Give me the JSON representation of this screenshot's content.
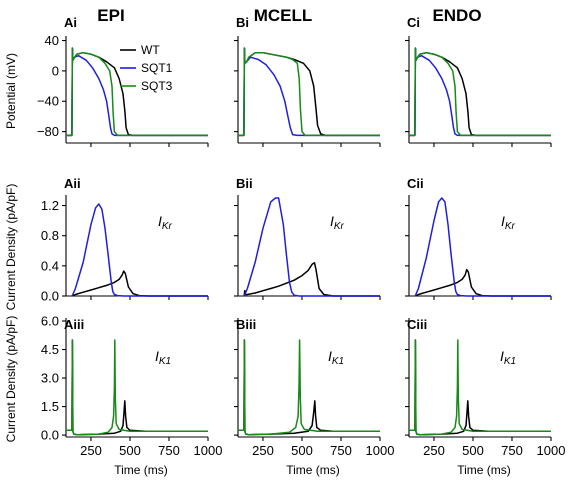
{
  "columns": [
    "EPI",
    "MCELL",
    "ENDO"
  ],
  "rows": [
    {
      "ylabel": "Potential (mV)",
      "panels": [
        "Ai",
        "Bi",
        "Ci"
      ],
      "annotation": null,
      "annotation_sub": null
    },
    {
      "ylabel": "Current Density (pA/pF)",
      "panels": [
        "Aii",
        "Bii",
        "Cii"
      ],
      "annotation": "I",
      "annotation_sub": "Kr"
    },
    {
      "ylabel": "Current Density (pA/pF)",
      "panels": [
        "Aiii",
        "Biii",
        "Ciii"
      ],
      "annotation": "I",
      "annotation_sub": "K1"
    }
  ],
  "xlabel": "Time (ms)",
  "colors": {
    "WT": "#000000",
    "SQT1": "#1f1fdd",
    "SQT3": "#178a17"
  },
  "legend": [
    "WT",
    "SQT1",
    "SQT3"
  ],
  "chart_data": [
    {
      "type": "line",
      "row": 0,
      "x_ticks": [
        250,
        500,
        750,
        1000
      ],
      "xlim": [
        90,
        1000
      ],
      "y_ticks": [
        40,
        0,
        -40,
        -80
      ],
      "ylim": [
        -95,
        42
      ],
      "series_by_column": [
        [
          {
            "name": "WT",
            "x": [
              90,
              128,
              131,
              134,
              145,
              160,
              200,
              250,
              300,
              350,
              400,
              430,
              455,
              468,
              475,
              490,
              520,
              1000
            ],
            "y": [
              -85,
              -85,
              30,
              14,
              18,
              22,
              24,
              22,
              18,
              12,
              4,
              -10,
              -30,
              -55,
              -75,
              -84,
              -85,
              -85
            ]
          },
          {
            "name": "SQT1",
            "x": [
              90,
              128,
              131,
              134,
              145,
              170,
              220,
              260,
              300,
              330,
              350,
              365,
              375,
              385,
              400,
              430,
              1000
            ],
            "y": [
              -85,
              -85,
              30,
              14,
              18,
              20,
              14,
              4,
              -10,
              -25,
              -40,
              -60,
              -75,
              -83,
              -85,
              -85,
              -85
            ]
          },
          {
            "name": "SQT3",
            "x": [
              90,
              128,
              131,
              134,
              145,
              160,
              200,
              250,
              300,
              340,
              370,
              385,
              392,
              400,
              420,
              1000
            ],
            "y": [
              -85,
              -85,
              30,
              14,
              18,
              22,
              24,
              22,
              18,
              10,
              0,
              -20,
              -55,
              -80,
              -85,
              -85
            ]
          }
        ],
        [
          {
            "name": "WT",
            "x": [
              90,
              128,
              131,
              134,
              145,
              160,
              200,
              250,
              300,
              350,
              400,
              450,
              510,
              550,
              575,
              590,
              600,
              620,
              650,
              1000
            ],
            "y": [
              -85,
              -85,
              30,
              10,
              12,
              18,
              24,
              24,
              22,
              20,
              18,
              15,
              10,
              0,
              -20,
              -50,
              -72,
              -83,
              -85,
              -85
            ]
          },
          {
            "name": "SQT1",
            "x": [
              90,
              128,
              131,
              134,
              145,
              170,
              220,
              270,
              320,
              360,
              390,
              410,
              425,
              440,
              470,
              1000
            ],
            "y": [
              -85,
              -85,
              30,
              10,
              12,
              18,
              15,
              8,
              -5,
              -20,
              -40,
              -60,
              -75,
              -84,
              -85,
              -85
            ]
          },
          {
            "name": "SQT3",
            "x": [
              90,
              128,
              131,
              134,
              145,
              160,
              200,
              250,
              300,
              350,
              400,
              440,
              470,
              482,
              490,
              500,
              520,
              1000
            ],
            "y": [
              -85,
              -85,
              30,
              10,
              12,
              18,
              24,
              24,
              22,
              20,
              18,
              15,
              10,
              -10,
              -50,
              -80,
              -85,
              -85
            ]
          }
        ],
        [
          {
            "name": "WT",
            "x": [
              90,
              128,
              131,
              134,
              145,
              160,
              200,
              250,
              300,
              350,
              400,
              430,
              455,
              468,
              475,
              490,
              520,
              1000
            ],
            "y": [
              -85,
              -85,
              30,
              14,
              18,
              22,
              24,
              22,
              18,
              12,
              4,
              -10,
              -30,
              -55,
              -75,
              -84,
              -85,
              -85
            ]
          },
          {
            "name": "SQT1",
            "x": [
              90,
              128,
              131,
              134,
              145,
              170,
              220,
              260,
              300,
              330,
              350,
              365,
              375,
              385,
              400,
              430,
              1000
            ],
            "y": [
              -85,
              -85,
              30,
              14,
              18,
              20,
              14,
              4,
              -10,
              -25,
              -40,
              -60,
              -75,
              -83,
              -85,
              -85,
              -85
            ]
          },
          {
            "name": "SQT3",
            "x": [
              90,
              128,
              131,
              134,
              145,
              160,
              200,
              250,
              300,
              340,
              370,
              385,
              392,
              400,
              420,
              1000
            ],
            "y": [
              -85,
              -85,
              30,
              14,
              18,
              22,
              24,
              22,
              18,
              10,
              0,
              -20,
              -55,
              -80,
              -85,
              -85
            ]
          }
        ]
      ]
    },
    {
      "type": "line",
      "row": 1,
      "x_ticks": [
        250,
        500,
        750,
        1000
      ],
      "xlim": [
        90,
        1000
      ],
      "y_ticks": [
        0.0,
        0.4,
        0.8,
        1.2
      ],
      "ylim": [
        0,
        1.3
      ],
      "series_by_column": [
        [
          {
            "name": "WT",
            "x": [
              130,
              150,
              200,
              250,
              300,
              350,
              400,
              430,
              450,
              460,
              470,
              490,
              520,
              560,
              620,
              1000
            ],
            "y": [
              0,
              0.02,
              0.05,
              0.08,
              0.11,
              0.14,
              0.18,
              0.22,
              0.28,
              0.33,
              0.3,
              0.12,
              0.03,
              0.005,
              0,
              0
            ]
          },
          {
            "name": "SQT1",
            "x": [
              130,
              150,
              200,
              250,
              280,
              300,
              320,
              340,
              360,
              380,
              390,
              400,
              420,
              460,
              1000
            ],
            "y": [
              0,
              0.1,
              0.45,
              0.95,
              1.17,
              1.22,
              1.15,
              0.9,
              0.55,
              0.18,
              0.06,
              0.02,
              0.005,
              0,
              0
            ]
          }
        ],
        [
          {
            "name": "WT",
            "x": [
              130,
              133,
              138,
              150,
              200,
              250,
              300,
              350,
              400,
              450,
              500,
              540,
              565,
              580,
              590,
              610,
              640,
              700,
              1000
            ],
            "y": [
              0,
              0.07,
              0.02,
              0.02,
              0.04,
              0.07,
              0.1,
              0.13,
              0.17,
              0.21,
              0.27,
              0.34,
              0.42,
              0.44,
              0.35,
              0.1,
              0.02,
              0,
              0
            ]
          },
          {
            "name": "SQT1",
            "x": [
              130,
              150,
              200,
              250,
              300,
              330,
              350,
              380,
              400,
              420,
              435,
              450,
              480,
              1000
            ],
            "y": [
              0,
              0.1,
              0.45,
              0.9,
              1.25,
              1.35,
              1.3,
              0.95,
              0.55,
              0.18,
              0.05,
              0.01,
              0,
              0
            ]
          }
        ],
        [
          {
            "name": "WT",
            "x": [
              130,
              150,
              200,
              250,
              300,
              350,
              400,
              430,
              450,
              460,
              470,
              490,
              520,
              560,
              620,
              1000
            ],
            "y": [
              0,
              0.02,
              0.05,
              0.08,
              0.11,
              0.14,
              0.18,
              0.22,
              0.28,
              0.35,
              0.32,
              0.12,
              0.03,
              0.005,
              0,
              0
            ]
          },
          {
            "name": "SQT1",
            "x": [
              130,
              150,
              200,
              250,
              280,
              300,
              320,
              340,
              360,
              380,
              390,
              400,
              420,
              460,
              1000
            ],
            "y": [
              0,
              0.1,
              0.5,
              1.0,
              1.25,
              1.32,
              1.25,
              0.95,
              0.55,
              0.18,
              0.06,
              0.02,
              0.005,
              0,
              0
            ]
          }
        ]
      ]
    },
    {
      "type": "line",
      "row": 2,
      "x_ticks": [
        250,
        500,
        750,
        1000
      ],
      "xlim": [
        90,
        1000
      ],
      "y_ticks": [
        0.0,
        1.5,
        3.0,
        4.5,
        6.0
      ],
      "ylim": [
        -0.1,
        6.0
      ],
      "series_by_column": [
        [
          {
            "name": "WT",
            "x": [
              90,
              128,
              131,
              134,
              140,
              160,
              300,
              400,
              440,
              455,
              462,
              467,
              472,
              480,
              500,
              600,
              1000
            ],
            "y": [
              0.25,
              0.25,
              5.0,
              0.2,
              0.05,
              0.02,
              0.05,
              0.1,
              0.2,
              0.5,
              1.2,
              1.8,
              1.0,
              0.4,
              0.25,
              0.2,
              0.2
            ]
          },
          {
            "name": "SQT3",
            "x": [
              90,
              128,
              131,
              134,
              140,
              160,
              300,
              360,
              385,
              395,
              400,
              403,
              406,
              412,
              430,
              500,
              1000
            ],
            "y": [
              0.25,
              0.25,
              5.0,
              0.2,
              0.05,
              0.02,
              0.05,
              0.15,
              0.4,
              1.0,
              2.5,
              5.0,
              2.0,
              0.6,
              0.3,
              0.2,
              0.2
            ]
          }
        ],
        [
          {
            "name": "WT",
            "x": [
              90,
              128,
              131,
              134,
              140,
              160,
              300,
              450,
              540,
              565,
              575,
              582,
              587,
              595,
              620,
              700,
              1000
            ],
            "y": [
              0.25,
              0.25,
              5.0,
              0.2,
              0.05,
              0.02,
              0.05,
              0.1,
              0.2,
              0.5,
              1.2,
              1.8,
              1.0,
              0.4,
              0.25,
              0.2,
              0.2
            ]
          },
          {
            "name": "SQT3",
            "x": [
              90,
              128,
              131,
              134,
              140,
              160,
              300,
              420,
              460,
              475,
              481,
              485,
              489,
              495,
              515,
              600,
              1000
            ],
            "y": [
              0.25,
              0.25,
              5.0,
              0.2,
              0.05,
              0.02,
              0.05,
              0.15,
              0.4,
              1.0,
              2.5,
              5.0,
              2.0,
              0.6,
              0.3,
              0.2,
              0.2
            ]
          }
        ],
        [
          {
            "name": "WT",
            "x": [
              90,
              128,
              131,
              134,
              140,
              160,
              300,
              400,
              440,
              455,
              462,
              467,
              472,
              480,
              500,
              600,
              1000
            ],
            "y": [
              0.25,
              0.25,
              5.0,
              0.2,
              0.05,
              0.02,
              0.05,
              0.1,
              0.2,
              0.5,
              1.2,
              1.8,
              1.0,
              0.4,
              0.25,
              0.2,
              0.2
            ]
          },
          {
            "name": "SQT3",
            "x": [
              90,
              128,
              131,
              134,
              140,
              160,
              300,
              360,
              385,
              395,
              400,
              403,
              406,
              412,
              430,
              500,
              1000
            ],
            "y": [
              0.25,
              0.25,
              5.0,
              0.2,
              0.05,
              0.02,
              0.05,
              0.15,
              0.4,
              1.0,
              2.5,
              5.0,
              2.0,
              0.6,
              0.3,
              0.2,
              0.2
            ]
          }
        ]
      ]
    }
  ]
}
